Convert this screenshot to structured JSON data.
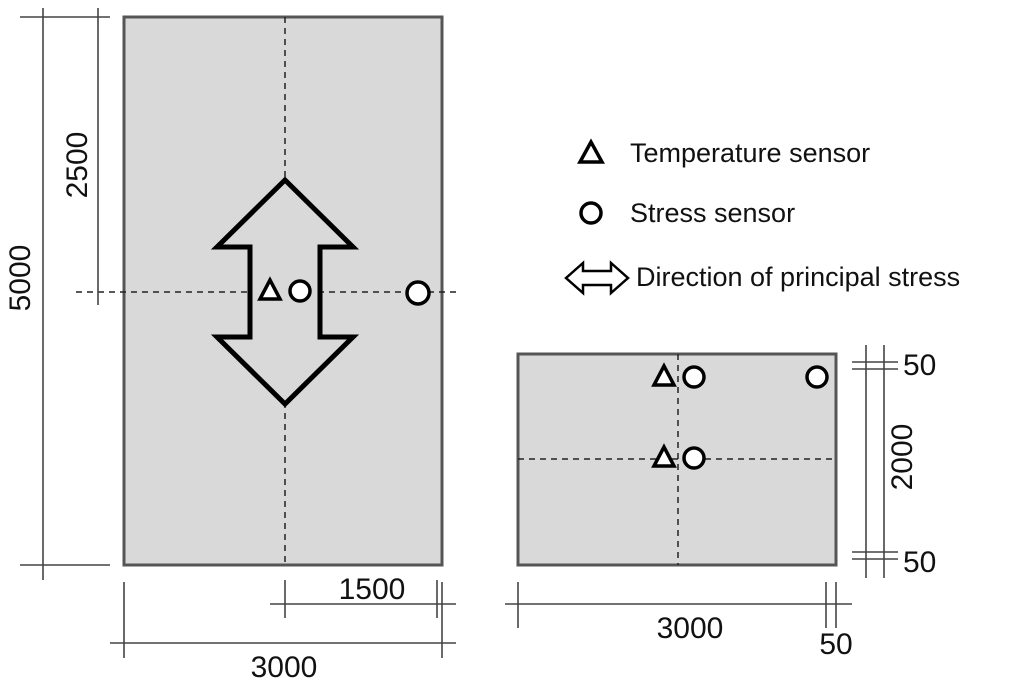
{
  "plan_view": {
    "dim_height": "5000",
    "dim_half_height": "2500",
    "dim_width": "3000",
    "dim_half_width": "1500"
  },
  "section_view": {
    "dim_depth": "2000",
    "dim_cover_top": "50",
    "dim_cover_bottom": "50",
    "dim_width": "3000",
    "dim_edge": "50"
  },
  "legend": {
    "temperature_sensor": "Temperature sensor",
    "stress_sensor": "Stress sensor",
    "principal_stress": "Direction of principal stress"
  },
  "colors": {
    "slab_fill": "#d9d9d9",
    "outline": "#555555",
    "symbol": "#000000"
  },
  "icons": {
    "temperature": "triangle-icon",
    "stress": "circle-icon",
    "direction": "double-arrow-icon"
  }
}
